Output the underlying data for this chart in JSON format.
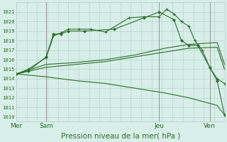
{
  "bg_color": "#d8eee8",
  "grid_color": "#b0d0c8",
  "line_color": "#2d6e2d",
  "xlabel": "Pression niveau de la mer( hPa )",
  "xlabel_fontsize": 7.5,
  "ylim": [
    1009.5,
    1022.0
  ],
  "yticks": [
    1010,
    1011,
    1012,
    1013,
    1014,
    1015,
    1016,
    1017,
    1018,
    1019,
    1020,
    1021
  ],
  "vline_color": "#888888",
  "series1": {
    "x": [
      0.0,
      0.4,
      1.0,
      1.25,
      1.5,
      1.75,
      2.1,
      2.5,
      3.0,
      3.8,
      4.3,
      4.8,
      5.05,
      5.3,
      5.55,
      5.8,
      6.0,
      6.25,
      6.5,
      6.75,
      7.0
    ],
    "y": [
      1014.5,
      1015.0,
      1016.2,
      1018.5,
      1018.8,
      1019.2,
      1019.2,
      1019.2,
      1018.9,
      1020.4,
      1020.5,
      1020.5,
      1021.3,
      1020.8,
      1020.0,
      1019.5,
      1018.0,
      1017.0,
      1015.2,
      1014.0,
      1013.5
    ]
  },
  "series2": {
    "x": [
      0.0,
      0.4,
      1.0,
      1.25,
      1.5,
      1.75,
      2.3,
      3.3,
      4.3,
      4.8,
      5.3,
      5.55,
      5.8,
      6.1,
      6.5,
      6.75,
      7.0
    ],
    "y": [
      1014.5,
      1014.8,
      1016.3,
      1018.7,
      1018.7,
      1019.0,
      1019.0,
      1019.2,
      1020.4,
      1021.0,
      1020.2,
      1018.0,
      1017.5,
      1017.5,
      1015.2,
      1013.8,
      1010.2
    ]
  },
  "series3": {
    "x": [
      0.0,
      1.0,
      2.0,
      3.0,
      4.0,
      5.0,
      5.8,
      6.75,
      7.0
    ],
    "y": [
      1014.5,
      1015.5,
      1015.7,
      1016.0,
      1016.5,
      1017.2,
      1017.6,
      1017.8,
      1015.5
    ]
  },
  "series4": {
    "x": [
      0.0,
      1.0,
      2.0,
      3.0,
      4.0,
      5.0,
      5.8,
      6.75,
      7.0
    ],
    "y": [
      1014.5,
      1015.2,
      1015.5,
      1015.8,
      1016.3,
      1016.8,
      1017.2,
      1017.3,
      1015.0
    ]
  },
  "series5": {
    "x": [
      0.0,
      1.0,
      2.0,
      3.0,
      4.0,
      5.0,
      5.8,
      6.75,
      7.0
    ],
    "y": [
      1014.5,
      1014.2,
      1013.8,
      1013.5,
      1013.0,
      1012.5,
      1012.0,
      1011.2,
      1010.2
    ]
  }
}
